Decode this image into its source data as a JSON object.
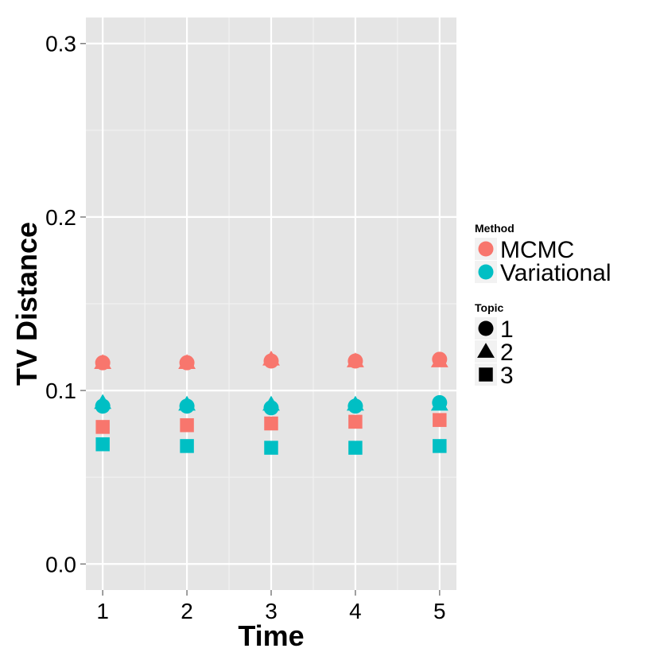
{
  "chart_data": {
    "type": "scatter",
    "xlabel": "Time",
    "ylabel": "TV Distance",
    "x_ticks": [
      "1",
      "2",
      "3",
      "4",
      "5"
    ],
    "y_ticks": [
      "0.0",
      "0.1",
      "0.2",
      "0.3"
    ],
    "xlim": [
      0.8,
      5.2
    ],
    "ylim": [
      -0.015,
      0.315
    ],
    "grid": true,
    "legend_placement": "right",
    "legends": {
      "method": {
        "title": "Method",
        "items": [
          {
            "label": "MCMC",
            "color": "#F8766D"
          },
          {
            "label": "Variational",
            "color": "#00BFC4"
          }
        ]
      },
      "topic": {
        "title": "Topic",
        "items": [
          {
            "label": "1",
            "shape": "circle"
          },
          {
            "label": "2",
            "shape": "triangle"
          },
          {
            "label": "3",
            "shape": "square"
          }
        ]
      }
    },
    "series": [
      {
        "method": "MCMC",
        "topic": "1",
        "color": "#F8766D",
        "shape": "circle",
        "x": [
          1,
          2,
          3,
          4,
          5
        ],
        "y": [
          0.116,
          0.116,
          0.117,
          0.117,
          0.118
        ]
      },
      {
        "method": "MCMC",
        "topic": "2",
        "color": "#F8766D",
        "shape": "triangle",
        "x": [
          1,
          2,
          3,
          4,
          5
        ],
        "y": [
          0.116,
          0.116,
          0.118,
          0.117,
          0.117
        ]
      },
      {
        "method": "MCMC",
        "topic": "3",
        "color": "#F8766D",
        "shape": "square",
        "x": [
          1,
          2,
          3,
          4,
          5
        ],
        "y": [
          0.079,
          0.08,
          0.081,
          0.082,
          0.083
        ]
      },
      {
        "method": "Variational",
        "topic": "1",
        "color": "#00BFC4",
        "shape": "circle",
        "x": [
          1,
          2,
          3,
          4,
          5
        ],
        "y": [
          0.091,
          0.091,
          0.09,
          0.091,
          0.093
        ]
      },
      {
        "method": "Variational",
        "topic": "2",
        "color": "#00BFC4",
        "shape": "triangle",
        "x": [
          1,
          2,
          3,
          4,
          5
        ],
        "y": [
          0.093,
          0.092,
          0.092,
          0.092,
          0.092
        ]
      },
      {
        "method": "Variational",
        "topic": "3",
        "color": "#00BFC4",
        "shape": "square",
        "x": [
          1,
          2,
          3,
          4,
          5
        ],
        "y": [
          0.069,
          0.068,
          0.067,
          0.067,
          0.068
        ]
      }
    ]
  }
}
